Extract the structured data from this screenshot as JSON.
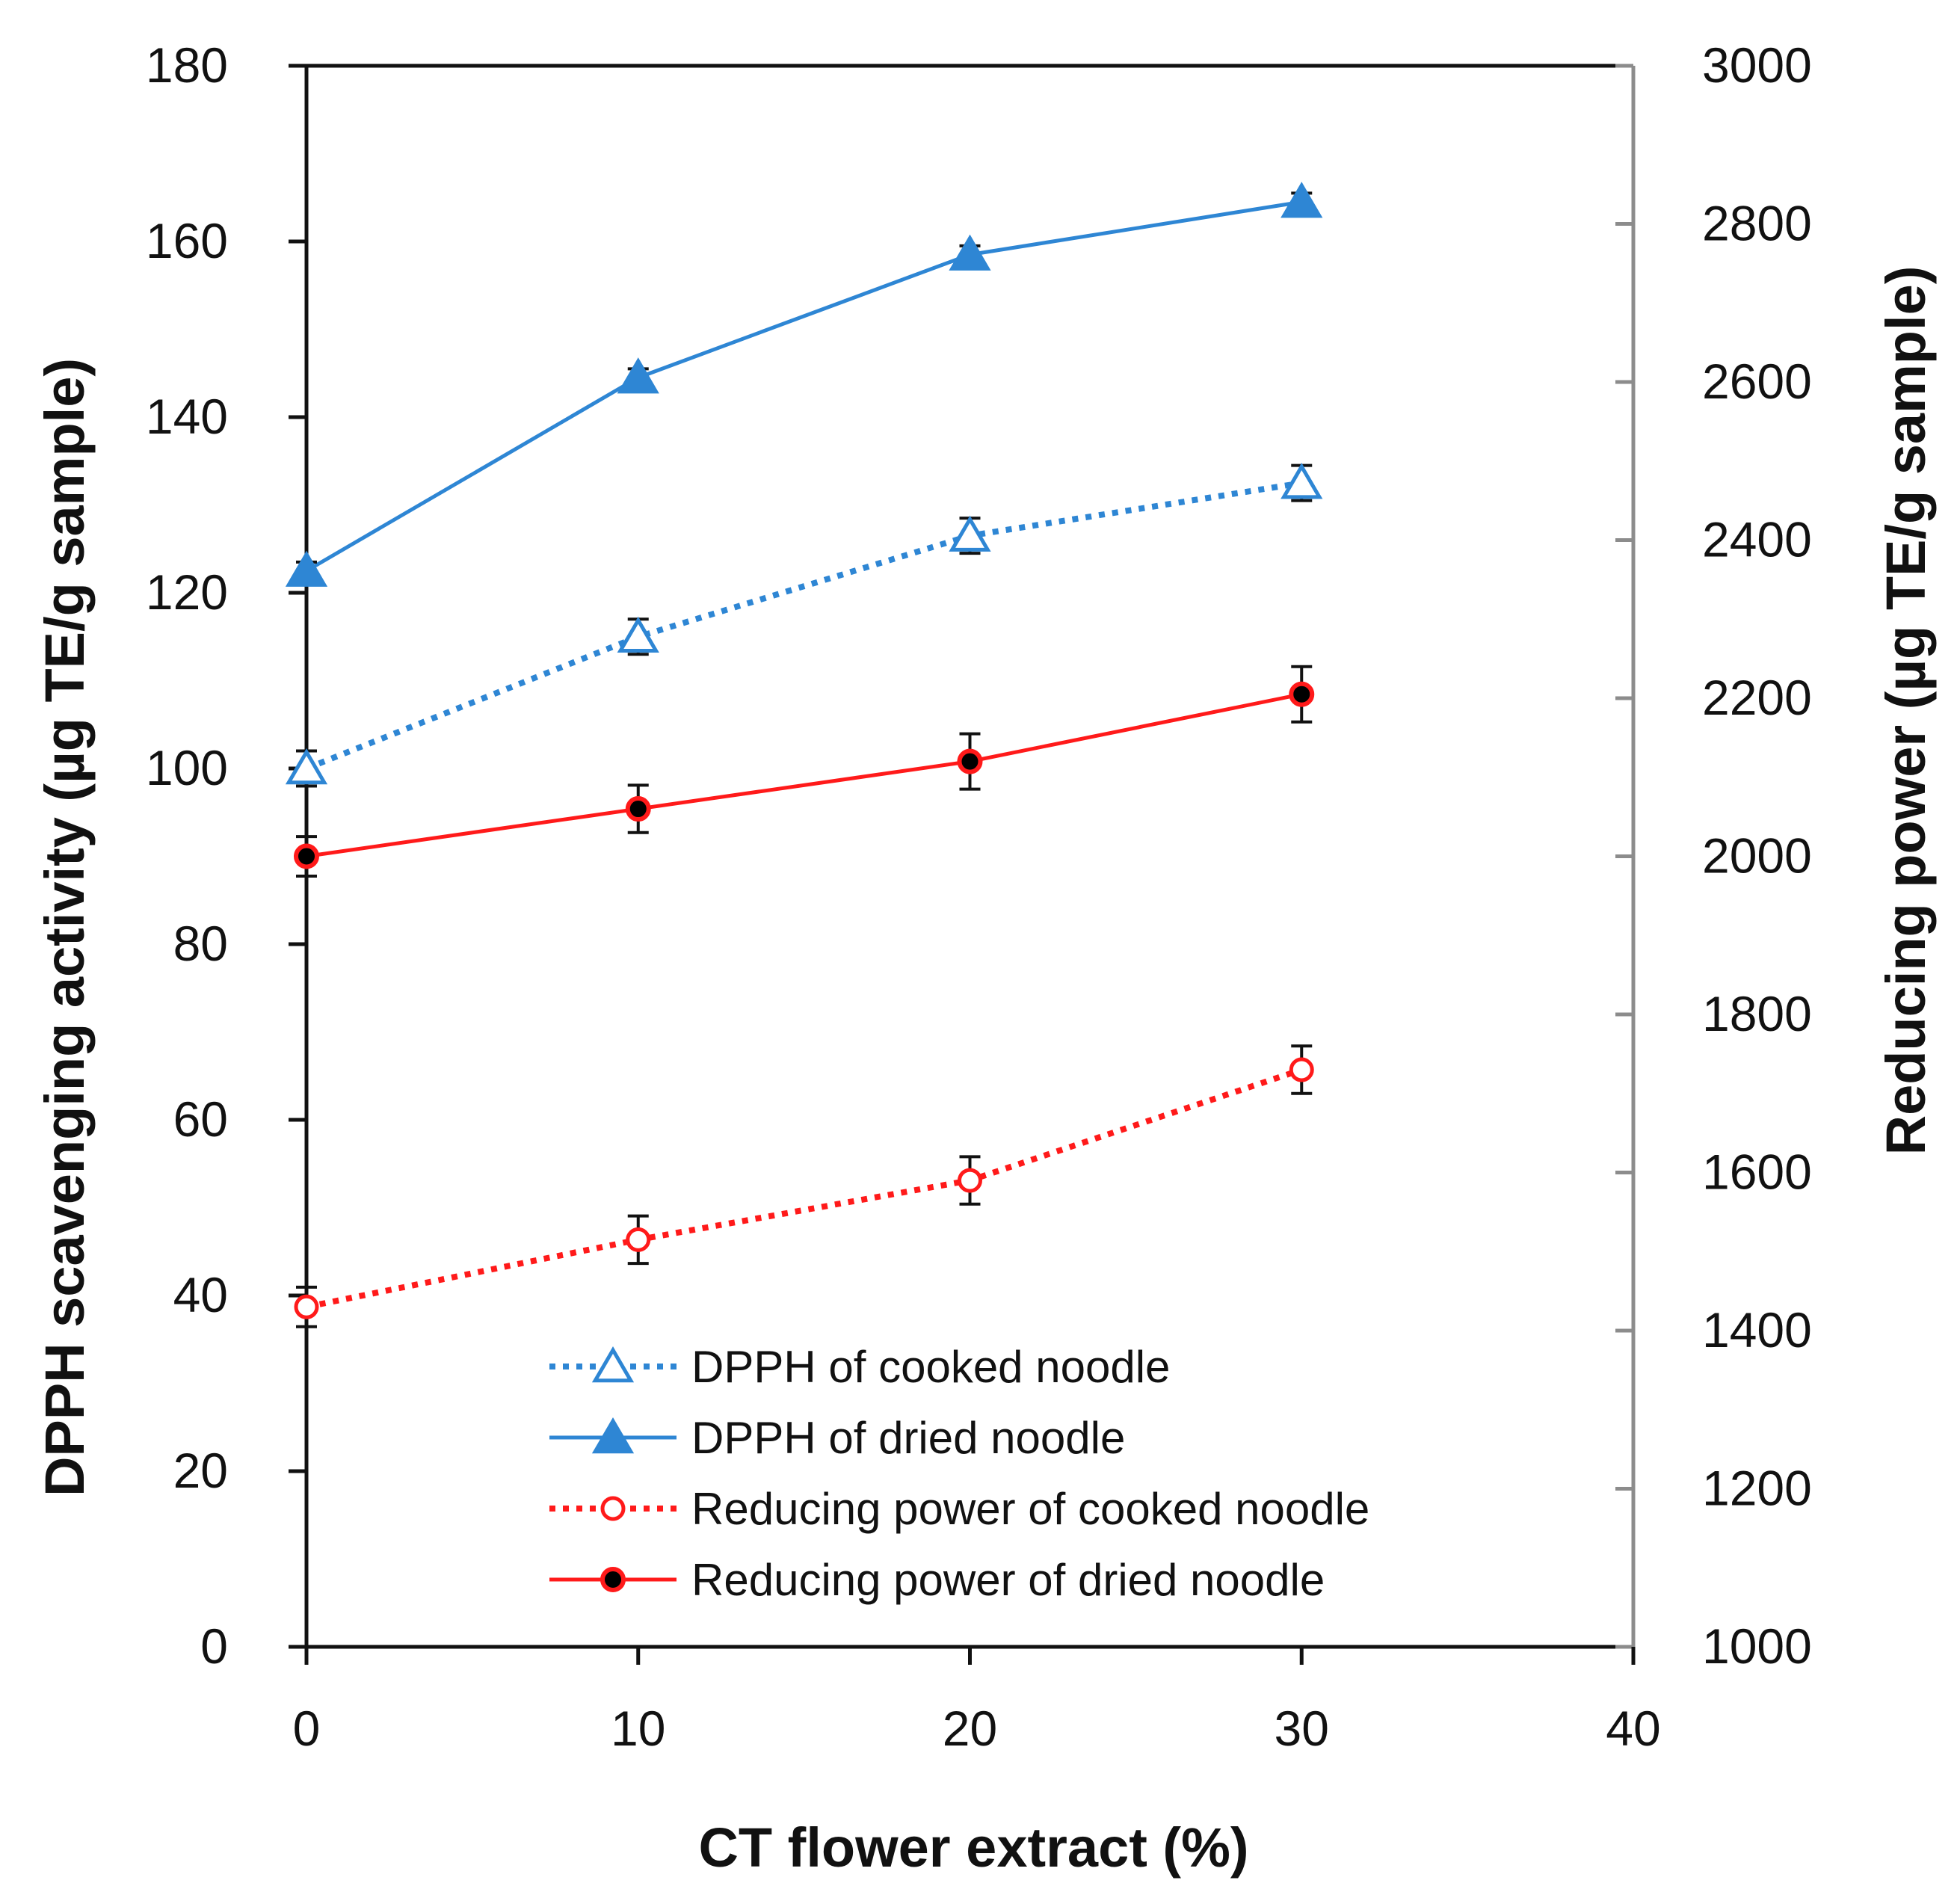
{
  "chart_data": {
    "type": "line",
    "x": [
      0,
      10,
      20,
      30
    ],
    "xlabel": "CT flower extract (%)",
    "ylabel": "DPPH scavenging activity (µg TE/g sample)",
    "y2label": "Reducing power (µg TE/g sample)",
    "xlim": [
      0,
      40
    ],
    "ylim": [
      0,
      180
    ],
    "y2lim": [
      1000,
      3000
    ],
    "xticks": [
      "0",
      "10",
      "20",
      "30",
      "40"
    ],
    "yticks": [
      "0",
      "20",
      "40",
      "60",
      "80",
      "100",
      "120",
      "140",
      "160",
      "180"
    ],
    "y2ticks": [
      "1000",
      "1200",
      "1400",
      "1600",
      "1800",
      "2000",
      "2200",
      "2400",
      "2600",
      "2800",
      "3000"
    ],
    "grid": false,
    "legend_position": "bottom-center",
    "series": [
      {
        "name": "DPPH of cooked noodle",
        "axis": "left",
        "values": [
          100,
          115,
          126.5,
          132.5
        ],
        "errors": [
          2.0,
          2.0,
          2.0,
          2.0
        ],
        "color": "#2e86d4",
        "line": "dotted",
        "marker": "triangle-open"
      },
      {
        "name": "DPPH of dried noodle",
        "axis": "left",
        "values": [
          122.5,
          144.5,
          158.5,
          164.5
        ],
        "errors": [
          1.0,
          1.0,
          1.0,
          1.0
        ],
        "color": "#2e86d4",
        "line": "solid",
        "marker": "triangle-filled"
      },
      {
        "name": "Reducing power of cooked noodle",
        "axis": "right",
        "values": [
          1430,
          1515,
          1590,
          1730
        ],
        "errors": [
          25,
          30,
          30,
          30
        ],
        "color": "#ff1a1a",
        "line": "dotted",
        "marker": "circle-open"
      },
      {
        "name": "Reducing power of dried noodle",
        "axis": "right",
        "values": [
          2000,
          2060,
          2120,
          2205
        ],
        "errors": [
          25,
          30,
          35,
          35
        ],
        "color": "#ff1a1a",
        "line": "solid",
        "marker": "circle-black-dot"
      }
    ]
  }
}
